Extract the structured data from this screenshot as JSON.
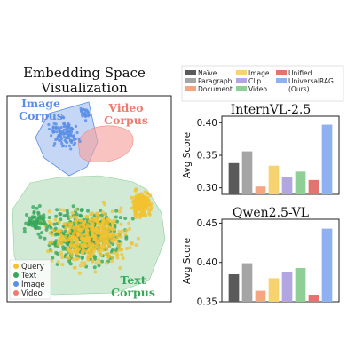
{
  "figure": {
    "embedding_title_line1": "Embedding Space",
    "embedding_title_line2": "Visualization",
    "image_corpus_line1": "Image",
    "image_corpus_line2": "Corpus",
    "video_corpus_line1": "Video",
    "video_corpus_line2": "Corpus",
    "text_corpus_line1": "Text",
    "text_corpus_line2": "Corpus",
    "scatter_legend": [
      {
        "label": "Query",
        "color": "#f2c230"
      },
      {
        "label": "Text",
        "color": "#3aa65a"
      },
      {
        "label": "Image",
        "color": "#5b8ee6"
      },
      {
        "label": "Video",
        "color": "#f07a6e"
      }
    ],
    "region_colors": {
      "image": "#7fa7e8",
      "video": "#f4a3a0",
      "text": "#a9d9b4"
    },
    "bar_legend": [
      {
        "label": "Naïve",
        "color": "#5a5a5a"
      },
      {
        "label": "Paragraph",
        "color": "#a5a5a5"
      },
      {
        "label": "Document",
        "color": "#f4a582"
      },
      {
        "label": "Image",
        "color": "#f6d36e"
      },
      {
        "label": "Clip",
        "color": "#b3a6e0"
      },
      {
        "label": "Video",
        "color": "#8fcf96"
      },
      {
        "label": "Unified",
        "color": "#e3736f"
      },
      {
        "label": "UniversalRAG",
        "color": "#8fb1f2"
      },
      {
        "label": "(Ours)",
        "color": ""
      }
    ]
  },
  "chart_data": [
    {
      "type": "bar",
      "title": "InternVL-2.5",
      "ylabel": "Avg Score",
      "categories": [
        "Naïve",
        "Paragraph",
        "Document",
        "Image",
        "Clip",
        "Video",
        "Unified",
        "UniversalRAG"
      ],
      "values": [
        0.338,
        0.356,
        0.302,
        0.334,
        0.316,
        0.325,
        0.312,
        0.397
      ],
      "ylim": [
        0.29,
        0.41
      ],
      "yticks": [
        "0.30",
        "0.35",
        "0.40"
      ],
      "ytick_values": [
        0.3,
        0.35,
        0.4
      ],
      "grid": false
    },
    {
      "type": "bar",
      "title": "Qwen2.5-VL",
      "ylabel": "Avg Score",
      "categories": [
        "Naïve",
        "Paragraph",
        "Document",
        "Image",
        "Clip",
        "Video",
        "Unified",
        "UniversalRAG"
      ],
      "values": [
        0.385,
        0.399,
        0.364,
        0.38,
        0.388,
        0.393,
        0.359,
        0.443
      ],
      "ylim": [
        0.35,
        0.455
      ],
      "yticks": [
        "0.35",
        "0.40",
        "0.45"
      ],
      "ytick_values": [
        0.35,
        0.4,
        0.45
      ],
      "grid": false
    }
  ]
}
